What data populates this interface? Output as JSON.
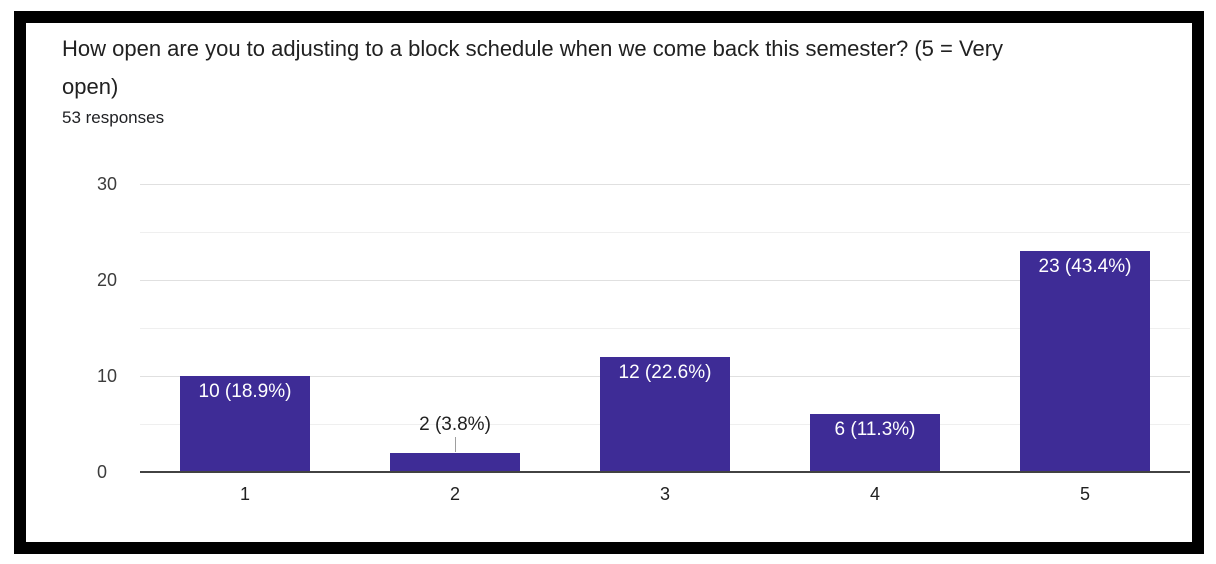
{
  "header": {
    "title_line1": "How open are you to adjusting to a block schedule when we come back this semester? (5 = Very",
    "title_line2": "open)",
    "responses": "53 responses"
  },
  "chart_data": {
    "type": "bar",
    "title": "How open are you to adjusting to a block schedule when we come back this semester? (5 = Very open)",
    "subtitle": "53 responses",
    "total_responses": 53,
    "categories": [
      "1",
      "2",
      "3",
      "4",
      "5"
    ],
    "values": [
      10,
      2,
      12,
      6,
      23
    ],
    "bar_labels": [
      "10 (18.9%)",
      "2 (3.8%)",
      "12 (22.6%)",
      "6 (11.3%)",
      "23 (43.4%)"
    ],
    "label_placement": [
      "inside",
      "outside",
      "inside",
      "inside",
      "inside"
    ],
    "xlabel": "",
    "ylabel": "",
    "y_ticks": [
      0,
      10,
      20,
      30
    ],
    "ylim": [
      0,
      30
    ],
    "grid": true,
    "legend": "none",
    "colors": {
      "bar": "#3E2C96",
      "bar_label_inside": "#FFFFFF",
      "bar_label_outside": "#212121",
      "connector": "#9E9E9E",
      "gridline_major": "#E0E0E0",
      "gridline_minor": "#EFEFEF",
      "axis_line": "#424242",
      "tick_label": "#3C3C3C",
      "title_text": "#212121",
      "frame_border": "#000000"
    }
  }
}
